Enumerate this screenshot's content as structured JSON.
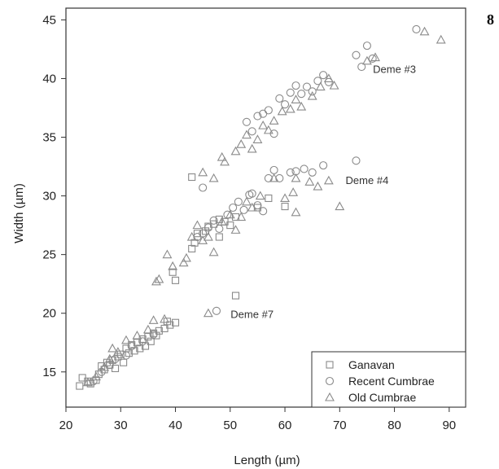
{
  "chart_data": {
    "type": "scatter",
    "title": "",
    "xlabel": "Length (µm)",
    "ylabel": "Width (µm)",
    "xlim": [
      20,
      93
    ],
    "ylim": [
      12,
      46
    ],
    "xticks": [
      20,
      30,
      40,
      50,
      60,
      70,
      80,
      90
    ],
    "yticks": [
      15,
      20,
      25,
      30,
      35,
      40,
      45
    ],
    "grid": false,
    "legend_position": "bottom-right",
    "page_marker": "8",
    "annotations": [
      {
        "text": "Deme #3",
        "x": 80,
        "y": 40.5
      },
      {
        "text": "Deme #4",
        "x": 75,
        "y": 31
      },
      {
        "text": "Deme #7",
        "x": 54,
        "y": 19.6
      }
    ],
    "series": [
      {
        "name": "Ganavan",
        "marker": "square",
        "color": "#8a8a8a",
        "points": [
          [
            22.5,
            13.8
          ],
          [
            23,
            14.5
          ],
          [
            24,
            14.2
          ],
          [
            24.5,
            14
          ],
          [
            25.5,
            14.3
          ],
          [
            26,
            14.8
          ],
          [
            26.5,
            15.5
          ],
          [
            27,
            15.2
          ],
          [
            27.5,
            15.8
          ],
          [
            28,
            15.6
          ],
          [
            28.5,
            16
          ],
          [
            29,
            15.3
          ],
          [
            29.5,
            16.3
          ],
          [
            30,
            16.5
          ],
          [
            30.5,
            15.8
          ],
          [
            31,
            17
          ],
          [
            31.5,
            16.6
          ],
          [
            32,
            17.3
          ],
          [
            32.5,
            16.8
          ],
          [
            33,
            17.5
          ],
          [
            33.5,
            17
          ],
          [
            34,
            17.8
          ],
          [
            34.5,
            17.2
          ],
          [
            35,
            18
          ],
          [
            35.5,
            17.6
          ],
          [
            36,
            18.3
          ],
          [
            36.5,
            18.1
          ],
          [
            37,
            18.5
          ],
          [
            38,
            18.7
          ],
          [
            38.5,
            19.3
          ],
          [
            39,
            19
          ],
          [
            40,
            19.2
          ],
          [
            39.5,
            23.5
          ],
          [
            40,
            22.8
          ],
          [
            43,
            25.5
          ],
          [
            43.5,
            26
          ],
          [
            44,
            26.8
          ],
          [
            45.5,
            27
          ],
          [
            46,
            27.4
          ],
          [
            47,
            27.6
          ],
          [
            48,
            28
          ],
          [
            49,
            27.8
          ],
          [
            50,
            27.5
          ],
          [
            51,
            28.2
          ],
          [
            43,
            31.6
          ],
          [
            55,
            29
          ],
          [
            57,
            29.8
          ],
          [
            60,
            29.1
          ],
          [
            48,
            26.5
          ],
          [
            51,
            21.5
          ]
        ]
      },
      {
        "name": "Recent Cumbrae",
        "marker": "circle",
        "color": "#8a8a8a",
        "points": [
          [
            25,
            14.2
          ],
          [
            26.5,
            15
          ],
          [
            28,
            15.6
          ],
          [
            29,
            16.1
          ],
          [
            31,
            16.4
          ],
          [
            32,
            17.2
          ],
          [
            34,
            17.6
          ],
          [
            36,
            18.2
          ],
          [
            44,
            26.5
          ],
          [
            45,
            26.8
          ],
          [
            46,
            27.3
          ],
          [
            47,
            27.9
          ],
          [
            48,
            27.2
          ],
          [
            49.5,
            28.4
          ],
          [
            50.5,
            29
          ],
          [
            51.5,
            29.5
          ],
          [
            52.5,
            28.8
          ],
          [
            53.5,
            30.1
          ],
          [
            54,
            30.2
          ],
          [
            55,
            29.2
          ],
          [
            56,
            28.7
          ],
          [
            57,
            31.5
          ],
          [
            58,
            32.2
          ],
          [
            59,
            31.5
          ],
          [
            61,
            32
          ],
          [
            62,
            32.1
          ],
          [
            63.5,
            32.3
          ],
          [
            65,
            32
          ],
          [
            67,
            32.6
          ],
          [
            73,
            33
          ],
          [
            45,
            30.7
          ],
          [
            53,
            36.3
          ],
          [
            54,
            35.5
          ],
          [
            55,
            36.8
          ],
          [
            56,
            37
          ],
          [
            57,
            37.3
          ],
          [
            58,
            35.3
          ],
          [
            59,
            38.3
          ],
          [
            60,
            37.8
          ],
          [
            61,
            38.8
          ],
          [
            62,
            39.4
          ],
          [
            63,
            38.7
          ],
          [
            64,
            39.3
          ],
          [
            65,
            38.9
          ],
          [
            66,
            39.8
          ],
          [
            67,
            40.3
          ],
          [
            68,
            39.7
          ],
          [
            73,
            42
          ],
          [
            74,
            41
          ],
          [
            75,
            42.8
          ],
          [
            76,
            41.7
          ],
          [
            84,
            44.2
          ],
          [
            47.5,
            20.2
          ]
        ]
      },
      {
        "name": "Old Cumbrae",
        "marker": "triangle",
        "color": "#8a8a8a",
        "points": [
          [
            24,
            14.1
          ],
          [
            25.5,
            14.6
          ],
          [
            27,
            15.4
          ],
          [
            28,
            16.1
          ],
          [
            28.5,
            17
          ],
          [
            29.5,
            16.7
          ],
          [
            31,
            17.7
          ],
          [
            33,
            18.1
          ],
          [
            35,
            18.6
          ],
          [
            36,
            19.4
          ],
          [
            38,
            19.5
          ],
          [
            36.5,
            22.7
          ],
          [
            37,
            22.9
          ],
          [
            38.5,
            25
          ],
          [
            39.5,
            24
          ],
          [
            41.5,
            24.3
          ],
          [
            42,
            24.7
          ],
          [
            43,
            26.5
          ],
          [
            44,
            27.5
          ],
          [
            45,
            26.2
          ],
          [
            46,
            26.5
          ],
          [
            47,
            25.2
          ],
          [
            48.5,
            27.8
          ],
          [
            50,
            28.4
          ],
          [
            51,
            27.1
          ],
          [
            52,
            28.2
          ],
          [
            53,
            29.5
          ],
          [
            54,
            29
          ],
          [
            55.5,
            30
          ],
          [
            58,
            31.5
          ],
          [
            60,
            29.8
          ],
          [
            61.5,
            30.3
          ],
          [
            62,
            28.6
          ],
          [
            64.5,
            31.2
          ],
          [
            66,
            30.8
          ],
          [
            68,
            31.3
          ],
          [
            70,
            29.1
          ],
          [
            45,
            32
          ],
          [
            47,
            31.5
          ],
          [
            48.5,
            33.3
          ],
          [
            49,
            32.9
          ],
          [
            51,
            33.8
          ],
          [
            52,
            34.4
          ],
          [
            53,
            35.2
          ],
          [
            54,
            34
          ],
          [
            55,
            34.8
          ],
          [
            56,
            36
          ],
          [
            57,
            35.6
          ],
          [
            58,
            36.4
          ],
          [
            59.5,
            37.2
          ],
          [
            61,
            37.4
          ],
          [
            62,
            38.2
          ],
          [
            63,
            37.6
          ],
          [
            65,
            38.5
          ],
          [
            66.5,
            39.3
          ],
          [
            68,
            40
          ],
          [
            69,
            39.4
          ],
          [
            75,
            41.5
          ],
          [
            76.5,
            41.8
          ],
          [
            85.5,
            44
          ],
          [
            88.5,
            43.3
          ],
          [
            46,
            20
          ],
          [
            62,
            31.5
          ]
        ]
      }
    ]
  }
}
